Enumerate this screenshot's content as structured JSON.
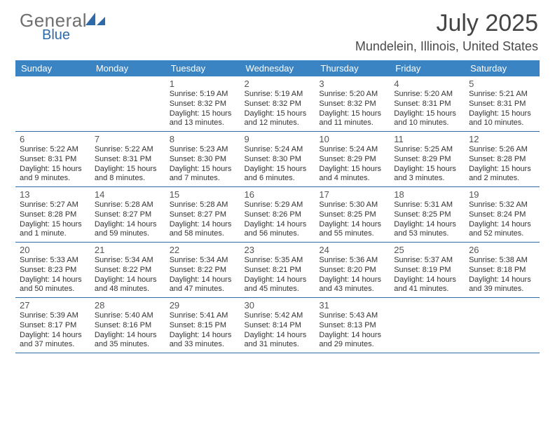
{
  "logo": {
    "word1": "General",
    "word2": "Blue"
  },
  "title": "July 2025",
  "location": "Mundelein, Illinois, United States",
  "colors": {
    "header_bg": "#3b84c4",
    "header_text": "#ffffff",
    "rule": "#2f6aa8",
    "logo_gray": "#6e6e6e",
    "logo_blue": "#2f6aa8",
    "text": "#333333"
  },
  "day_names": [
    "Sunday",
    "Monday",
    "Tuesday",
    "Wednesday",
    "Thursday",
    "Friday",
    "Saturday"
  ],
  "weeks": [
    [
      null,
      null,
      {
        "n": "1",
        "sr": "5:19 AM",
        "ss": "8:32 PM",
        "dl": "15 hours and 13 minutes."
      },
      {
        "n": "2",
        "sr": "5:19 AM",
        "ss": "8:32 PM",
        "dl": "15 hours and 12 minutes."
      },
      {
        "n": "3",
        "sr": "5:20 AM",
        "ss": "8:32 PM",
        "dl": "15 hours and 11 minutes."
      },
      {
        "n": "4",
        "sr": "5:20 AM",
        "ss": "8:31 PM",
        "dl": "15 hours and 10 minutes."
      },
      {
        "n": "5",
        "sr": "5:21 AM",
        "ss": "8:31 PM",
        "dl": "15 hours and 10 minutes."
      }
    ],
    [
      {
        "n": "6",
        "sr": "5:22 AM",
        "ss": "8:31 PM",
        "dl": "15 hours and 9 minutes."
      },
      {
        "n": "7",
        "sr": "5:22 AM",
        "ss": "8:31 PM",
        "dl": "15 hours and 8 minutes."
      },
      {
        "n": "8",
        "sr": "5:23 AM",
        "ss": "8:30 PM",
        "dl": "15 hours and 7 minutes."
      },
      {
        "n": "9",
        "sr": "5:24 AM",
        "ss": "8:30 PM",
        "dl": "15 hours and 6 minutes."
      },
      {
        "n": "10",
        "sr": "5:24 AM",
        "ss": "8:29 PM",
        "dl": "15 hours and 4 minutes."
      },
      {
        "n": "11",
        "sr": "5:25 AM",
        "ss": "8:29 PM",
        "dl": "15 hours and 3 minutes."
      },
      {
        "n": "12",
        "sr": "5:26 AM",
        "ss": "8:28 PM",
        "dl": "15 hours and 2 minutes."
      }
    ],
    [
      {
        "n": "13",
        "sr": "5:27 AM",
        "ss": "8:28 PM",
        "dl": "15 hours and 1 minute."
      },
      {
        "n": "14",
        "sr": "5:28 AM",
        "ss": "8:27 PM",
        "dl": "14 hours and 59 minutes."
      },
      {
        "n": "15",
        "sr": "5:28 AM",
        "ss": "8:27 PM",
        "dl": "14 hours and 58 minutes."
      },
      {
        "n": "16",
        "sr": "5:29 AM",
        "ss": "8:26 PM",
        "dl": "14 hours and 56 minutes."
      },
      {
        "n": "17",
        "sr": "5:30 AM",
        "ss": "8:25 PM",
        "dl": "14 hours and 55 minutes."
      },
      {
        "n": "18",
        "sr": "5:31 AM",
        "ss": "8:25 PM",
        "dl": "14 hours and 53 minutes."
      },
      {
        "n": "19",
        "sr": "5:32 AM",
        "ss": "8:24 PM",
        "dl": "14 hours and 52 minutes."
      }
    ],
    [
      {
        "n": "20",
        "sr": "5:33 AM",
        "ss": "8:23 PM",
        "dl": "14 hours and 50 minutes."
      },
      {
        "n": "21",
        "sr": "5:34 AM",
        "ss": "8:22 PM",
        "dl": "14 hours and 48 minutes."
      },
      {
        "n": "22",
        "sr": "5:34 AM",
        "ss": "8:22 PM",
        "dl": "14 hours and 47 minutes."
      },
      {
        "n": "23",
        "sr": "5:35 AM",
        "ss": "8:21 PM",
        "dl": "14 hours and 45 minutes."
      },
      {
        "n": "24",
        "sr": "5:36 AM",
        "ss": "8:20 PM",
        "dl": "14 hours and 43 minutes."
      },
      {
        "n": "25",
        "sr": "5:37 AM",
        "ss": "8:19 PM",
        "dl": "14 hours and 41 minutes."
      },
      {
        "n": "26",
        "sr": "5:38 AM",
        "ss": "8:18 PM",
        "dl": "14 hours and 39 minutes."
      }
    ],
    [
      {
        "n": "27",
        "sr": "5:39 AM",
        "ss": "8:17 PM",
        "dl": "14 hours and 37 minutes."
      },
      {
        "n": "28",
        "sr": "5:40 AM",
        "ss": "8:16 PM",
        "dl": "14 hours and 35 minutes."
      },
      {
        "n": "29",
        "sr": "5:41 AM",
        "ss": "8:15 PM",
        "dl": "14 hours and 33 minutes."
      },
      {
        "n": "30",
        "sr": "5:42 AM",
        "ss": "8:14 PM",
        "dl": "14 hours and 31 minutes."
      },
      {
        "n": "31",
        "sr": "5:43 AM",
        "ss": "8:13 PM",
        "dl": "14 hours and 29 minutes."
      },
      null,
      null
    ]
  ],
  "labels": {
    "sunrise": "Sunrise:",
    "sunset": "Sunset:",
    "daylight": "Daylight:"
  }
}
